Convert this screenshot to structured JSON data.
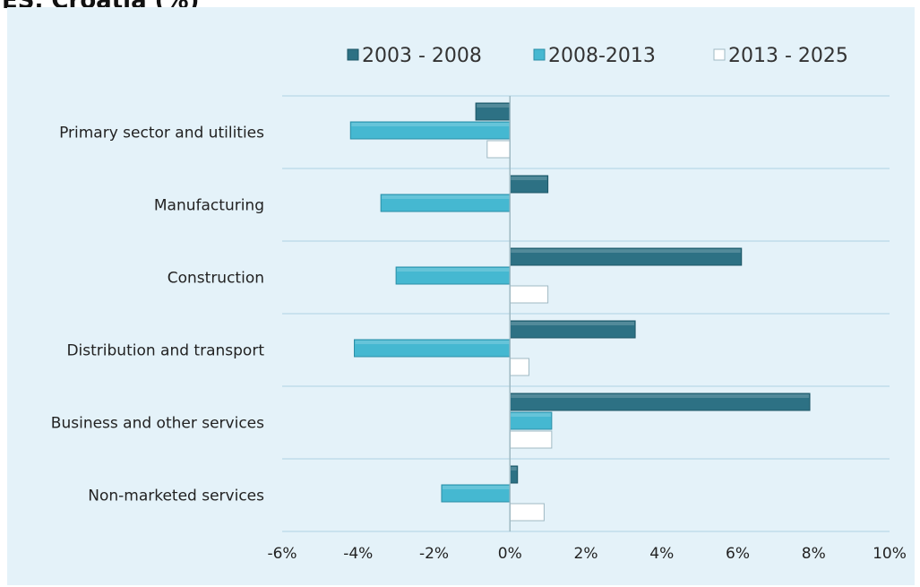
{
  "header": {
    "title": "ES, Croatia (%)"
  },
  "colors": {
    "panel_background": "#e4f2f9",
    "gridline": "#b9d9e8",
    "series_2003_2008": "#2d7184",
    "series_2008_2013": "#45b8d1",
    "series_2013_2025": "#ffffff"
  },
  "chart_data": {
    "type": "bar",
    "orientation": "horizontal",
    "title": "ES, Croatia (%)",
    "categories": [
      "Primary sector and utilities",
      "Manufacturing",
      "Construction",
      "Distribution and transport",
      "Business and other services",
      "Non-marketed services"
    ],
    "series": [
      {
        "name": "2003 - 2008",
        "values": [
          -0.9,
          1.0,
          6.1,
          3.3,
          7.9,
          0.2
        ]
      },
      {
        "name": "2008-2013",
        "values": [
          -4.2,
          -3.4,
          -3.0,
          -4.1,
          1.1,
          -1.8
        ]
      },
      {
        "name": "2013 - 2025",
        "values": [
          -0.6,
          0.0,
          1.0,
          0.5,
          1.1,
          0.9
        ]
      }
    ],
    "xlim": [
      -6,
      10
    ],
    "x_ticks": [
      -6,
      -4,
      -2,
      0,
      2,
      4,
      6,
      8,
      10
    ],
    "x_tick_labels": [
      "-6%",
      "-4%",
      "-2%",
      "0%",
      "2%",
      "4%",
      "6%",
      "8%",
      "10%"
    ],
    "xlabel": "",
    "ylabel": "",
    "grid": true,
    "legend_position": "top"
  }
}
